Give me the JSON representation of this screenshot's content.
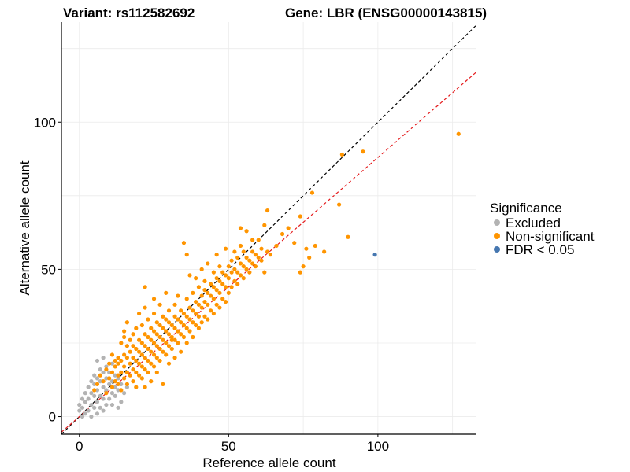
{
  "chart_data": {
    "type": "scatter",
    "title_left": "Variant: rs112582692",
    "title_right": "Gene: LBR (ENSG00000143815)",
    "xlabel": "Reference allele count",
    "ylabel": "Alternative allele count",
    "xlim": [
      -6,
      133
    ],
    "ylim": [
      -6,
      134
    ],
    "xticks": [
      0,
      50,
      100
    ],
    "yticks": [
      0,
      50,
      100
    ],
    "grid": true,
    "legend": {
      "title": "Significance",
      "position": "right",
      "items": [
        {
          "label": "Excluded",
          "color": "#b3b3b3"
        },
        {
          "label": "Non-significant",
          "color": "#ff9500"
        },
        {
          "label": "FDR < 0.05",
          "color": "#4677b0"
        }
      ]
    },
    "reference_lines": [
      {
        "name": "identity",
        "slope": 1.0,
        "intercept": 0,
        "color": "#000000",
        "dash": "dashed"
      },
      {
        "name": "fit",
        "slope": 0.88,
        "intercept": 0,
        "color": "#e41a1c",
        "dash": "dashed"
      }
    ],
    "series": [
      {
        "name": "Excluded",
        "color": "#b3b3b3",
        "points": [
          [
            0,
            2
          ],
          [
            0,
            4
          ],
          [
            1,
            0
          ],
          [
            1,
            3
          ],
          [
            1,
            6
          ],
          [
            2,
            1
          ],
          [
            2,
            5
          ],
          [
            2,
            8
          ],
          [
            3,
            2
          ],
          [
            3,
            6
          ],
          [
            3,
            10
          ],
          [
            4,
            0
          ],
          [
            4,
            4
          ],
          [
            4,
            8
          ],
          [
            4,
            12
          ],
          [
            5,
            3
          ],
          [
            5,
            7
          ],
          [
            5,
            11
          ],
          [
            5,
            14
          ],
          [
            6,
            1
          ],
          [
            6,
            5
          ],
          [
            6,
            9
          ],
          [
            6,
            13
          ],
          [
            6,
            19
          ],
          [
            7,
            3
          ],
          [
            7,
            7
          ],
          [
            7,
            12
          ],
          [
            7,
            16
          ],
          [
            8,
            2
          ],
          [
            8,
            6
          ],
          [
            8,
            10
          ],
          [
            8,
            15
          ],
          [
            8,
            20
          ],
          [
            9,
            4
          ],
          [
            9,
            9
          ],
          [
            9,
            13
          ],
          [
            9,
            17
          ],
          [
            10,
            6
          ],
          [
            10,
            11
          ],
          [
            10,
            15
          ],
          [
            11,
            4
          ],
          [
            11,
            8
          ],
          [
            11,
            12
          ],
          [
            11,
            18
          ],
          [
            12,
            7
          ],
          [
            12,
            10
          ],
          [
            12,
            14
          ],
          [
            13,
            3
          ],
          [
            13,
            9
          ],
          [
            13,
            13
          ],
          [
            14,
            5
          ],
          [
            14,
            11
          ],
          [
            15,
            8
          ],
          [
            16,
            10
          ]
        ]
      },
      {
        "name": "Non-significant",
        "color": "#ff9500",
        "points": [
          [
            5,
            9
          ],
          [
            6,
            11
          ],
          [
            7,
            14
          ],
          [
            8,
            12
          ],
          [
            9,
            16
          ],
          [
            9,
            8
          ],
          [
            10,
            13
          ],
          [
            10,
            18
          ],
          [
            11,
            10
          ],
          [
            11,
            15
          ],
          [
            11,
            21
          ],
          [
            12,
            12
          ],
          [
            12,
            17
          ],
          [
            12,
            19
          ],
          [
            13,
            14
          ],
          [
            13,
            18
          ],
          [
            13,
            20
          ],
          [
            13,
            11
          ],
          [
            14,
            15
          ],
          [
            14,
            19
          ],
          [
            14,
            25
          ],
          [
            14,
            9
          ],
          [
            15,
            13
          ],
          [
            15,
            17
          ],
          [
            15,
            21
          ],
          [
            15,
            27
          ],
          [
            15,
            29
          ],
          [
            16,
            11
          ],
          [
            16,
            15
          ],
          [
            16,
            20
          ],
          [
            16,
            24
          ],
          [
            16,
            32
          ],
          [
            17,
            14
          ],
          [
            17,
            18
          ],
          [
            17,
            22
          ],
          [
            17,
            26
          ],
          [
            18,
            12
          ],
          [
            18,
            16
          ],
          [
            18,
            20
          ],
          [
            18,
            24
          ],
          [
            18,
            28
          ],
          [
            19,
            15
          ],
          [
            19,
            19
          ],
          [
            19,
            23
          ],
          [
            19,
            30
          ],
          [
            19,
            10
          ],
          [
            20,
            14
          ],
          [
            20,
            18
          ],
          [
            20,
            22
          ],
          [
            20,
            26
          ],
          [
            20,
            35
          ],
          [
            21,
            13
          ],
          [
            21,
            17
          ],
          [
            21,
            21
          ],
          [
            21,
            25
          ],
          [
            21,
            31
          ],
          [
            22,
            16
          ],
          [
            22,
            20
          ],
          [
            22,
            24
          ],
          [
            22,
            28
          ],
          [
            22,
            37
          ],
          [
            22,
            44
          ],
          [
            22,
            10
          ],
          [
            23,
            15
          ],
          [
            23,
            19
          ],
          [
            23,
            23
          ],
          [
            23,
            27
          ],
          [
            23,
            33
          ],
          [
            24,
            18
          ],
          [
            24,
            22
          ],
          [
            24,
            26
          ],
          [
            24,
            30
          ],
          [
            24,
            12
          ],
          [
            25,
            17
          ],
          [
            25,
            21
          ],
          [
            25,
            25
          ],
          [
            25,
            29
          ],
          [
            25,
            35
          ],
          [
            25,
            40
          ],
          [
            26,
            20
          ],
          [
            26,
            24
          ],
          [
            26,
            28
          ],
          [
            26,
            32
          ],
          [
            26,
            15
          ],
          [
            27,
            19
          ],
          [
            27,
            23
          ],
          [
            27,
            27
          ],
          [
            27,
            31
          ],
          [
            27,
            38
          ],
          [
            28,
            22
          ],
          [
            28,
            26
          ],
          [
            28,
            30
          ],
          [
            28,
            34
          ],
          [
            28,
            11
          ],
          [
            29,
            21
          ],
          [
            29,
            25
          ],
          [
            29,
            29
          ],
          [
            29,
            33
          ],
          [
            29,
            42
          ],
          [
            30,
            18
          ],
          [
            30,
            24
          ],
          [
            30,
            28
          ],
          [
            30,
            32
          ],
          [
            30,
            36
          ],
          [
            31,
            23
          ],
          [
            31,
            27
          ],
          [
            31,
            31
          ],
          [
            31,
            26
          ],
          [
            32,
            20
          ],
          [
            32,
            26
          ],
          [
            32,
            30
          ],
          [
            32,
            34
          ],
          [
            32,
            38
          ],
          [
            33,
            25
          ],
          [
            33,
            29
          ],
          [
            33,
            33
          ],
          [
            33,
            41
          ],
          [
            34,
            22
          ],
          [
            34,
            28
          ],
          [
            34,
            32
          ],
          [
            34,
            36
          ],
          [
            35,
            27
          ],
          [
            35,
            31
          ],
          [
            35,
            35
          ],
          [
            35,
            59
          ],
          [
            36,
            25
          ],
          [
            36,
            30
          ],
          [
            36,
            34
          ],
          [
            36,
            40
          ],
          [
            36,
            55
          ],
          [
            37,
            29
          ],
          [
            37,
            33
          ],
          [
            37,
            37
          ],
          [
            37,
            48
          ],
          [
            38,
            27
          ],
          [
            38,
            32
          ],
          [
            38,
            36
          ],
          [
            38,
            42
          ],
          [
            39,
            31
          ],
          [
            39,
            35
          ],
          [
            39,
            39
          ],
          [
            39,
            47
          ],
          [
            40,
            30
          ],
          [
            40,
            34
          ],
          [
            40,
            38
          ],
          [
            40,
            44
          ],
          [
            41,
            32
          ],
          [
            41,
            37
          ],
          [
            41,
            41
          ],
          [
            41,
            50
          ],
          [
            42,
            34
          ],
          [
            42,
            39
          ],
          [
            42,
            43
          ],
          [
            42,
            46
          ],
          [
            43,
            33
          ],
          [
            43,
            38
          ],
          [
            43,
            42
          ],
          [
            43,
            52
          ],
          [
            44,
            36
          ],
          [
            44,
            41
          ],
          [
            44,
            45
          ],
          [
            45,
            35
          ],
          [
            45,
            40
          ],
          [
            45,
            44
          ],
          [
            45,
            49
          ],
          [
            46,
            38
          ],
          [
            46,
            43
          ],
          [
            46,
            47
          ],
          [
            46,
            55
          ],
          [
            47,
            37
          ],
          [
            47,
            42
          ],
          [
            47,
            46
          ],
          [
            47,
            51
          ],
          [
            48,
            40
          ],
          [
            48,
            45
          ],
          [
            48,
            49
          ],
          [
            49,
            39
          ],
          [
            49,
            44
          ],
          [
            49,
            48
          ],
          [
            49,
            57
          ],
          [
            50,
            42
          ],
          [
            50,
            47
          ],
          [
            50,
            51
          ],
          [
            51,
            44
          ],
          [
            51,
            49
          ],
          [
            51,
            53
          ],
          [
            52,
            46
          ],
          [
            52,
            50
          ],
          [
            52,
            56
          ],
          [
            53,
            45
          ],
          [
            53,
            49
          ],
          [
            53,
            54
          ],
          [
            54,
            48
          ],
          [
            54,
            52
          ],
          [
            54,
            58
          ],
          [
            54,
            64
          ],
          [
            55,
            47
          ],
          [
            55,
            51
          ],
          [
            55,
            56
          ],
          [
            56,
            50
          ],
          [
            56,
            54
          ],
          [
            56,
            63
          ],
          [
            57,
            49
          ],
          [
            57,
            53
          ],
          [
            58,
            52
          ],
          [
            58,
            56
          ],
          [
            58,
            60
          ],
          [
            59,
            51
          ],
          [
            59,
            55
          ],
          [
            60,
            54
          ],
          [
            60,
            60
          ],
          [
            61,
            53
          ],
          [
            61,
            57
          ],
          [
            62,
            65
          ],
          [
            62,
            49
          ],
          [
            63,
            56
          ],
          [
            63,
            70
          ],
          [
            64,
            55
          ],
          [
            66,
            58
          ],
          [
            68,
            62
          ],
          [
            70,
            64
          ],
          [
            72,
            59
          ],
          [
            74,
            68
          ],
          [
            74,
            49
          ],
          [
            75,
            51
          ],
          [
            76,
            57
          ],
          [
            77,
            54
          ],
          [
            78,
            76
          ],
          [
            79,
            58
          ],
          [
            82,
            56
          ],
          [
            87,
            72
          ],
          [
            88,
            89
          ],
          [
            90,
            61
          ],
          [
            95,
            90
          ],
          [
            127,
            96
          ]
        ]
      },
      {
        "name": "FDR < 0.05",
        "color": "#4677b0",
        "points": [
          [
            99,
            55
          ]
        ]
      }
    ]
  }
}
